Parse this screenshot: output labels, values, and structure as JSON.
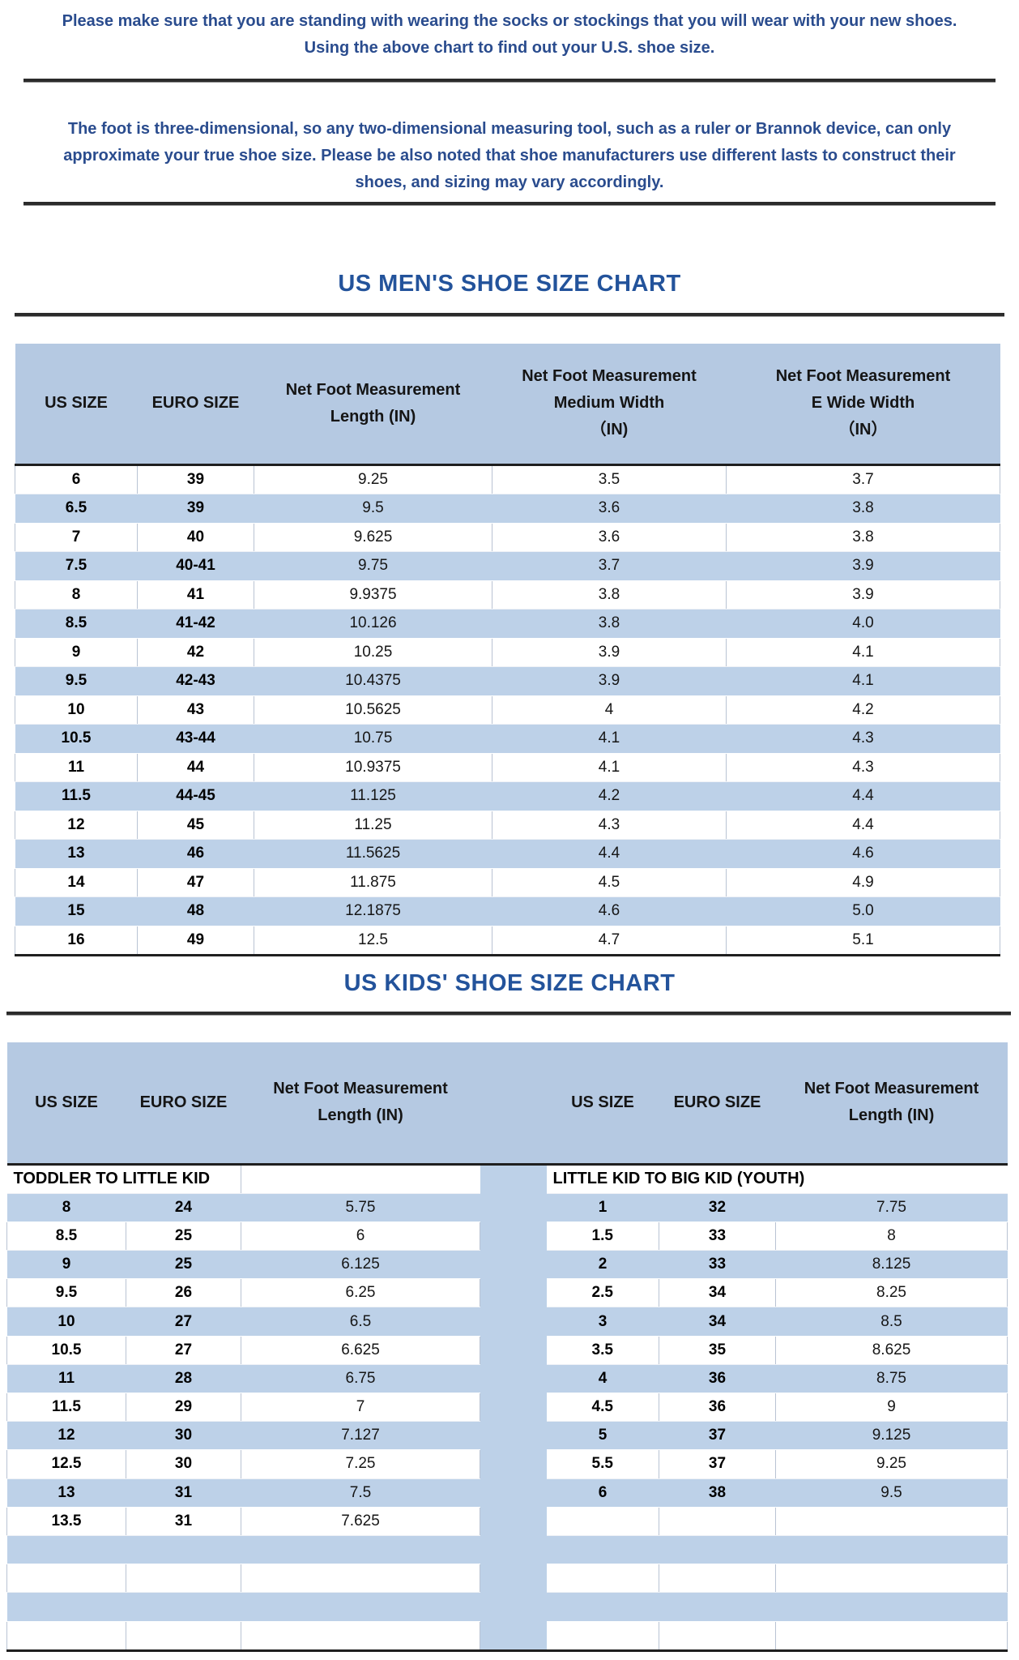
{
  "intro": {
    "paragraph1": [
      "Please make sure that you are standing with wearing the socks or stockings that you will wear with your new shoes.",
      "Using the above chart to find out your U.S. shoe size."
    ],
    "paragraph2": [
      "The foot is three-dimensional, so any two-dimensional measuring tool, such as a ruler or Brannok device, can only",
      "approximate your true shoe size. Please be also noted that shoe manufacturers use different lasts to construct their",
      "shoes, and sizing may vary accordingly."
    ]
  },
  "mens_chart": {
    "title": "US MEN'S SHOE SIZE CHART",
    "columns": [
      [
        "US SIZE"
      ],
      [
        "EURO SIZE"
      ],
      [
        "Net Foot Measurement",
        "Length (IN)"
      ],
      [
        "Net Foot Measurement",
        "Medium Width",
        "（IN)"
      ],
      [
        "Net Foot Measurement",
        "E Wide Width",
        "（IN）"
      ]
    ],
    "rows": [
      [
        "6",
        "39",
        "9.25",
        "3.5",
        "3.7"
      ],
      [
        "6.5",
        "39",
        "9.5",
        "3.6",
        "3.8"
      ],
      [
        "7",
        "40",
        "9.625",
        "3.6",
        "3.8"
      ],
      [
        "7.5",
        "40-41",
        "9.75",
        "3.7",
        "3.9"
      ],
      [
        "8",
        "41",
        "9.9375",
        "3.8",
        "3.9"
      ],
      [
        "8.5",
        "41-42",
        "10.126",
        "3.8",
        "4.0"
      ],
      [
        "9",
        "42",
        "10.25",
        "3.9",
        "4.1"
      ],
      [
        "9.5",
        "42-43",
        "10.4375",
        "3.9",
        "4.1"
      ],
      [
        "10",
        "43",
        "10.5625",
        "4",
        "4.2"
      ],
      [
        "10.5",
        "43-44",
        "10.75",
        "4.1",
        "4.3"
      ],
      [
        "11",
        "44",
        "10.9375",
        "4.1",
        "4.3"
      ],
      [
        "11.5",
        "44-45",
        "11.125",
        "4.2",
        "4.4"
      ],
      [
        "12",
        "45",
        "11.25",
        "4.3",
        "4.4"
      ],
      [
        "13",
        "46",
        "11.5625",
        "4.4",
        "4.6"
      ],
      [
        "14",
        "47",
        "11.875",
        "4.5",
        "4.9"
      ],
      [
        "15",
        "48",
        "12.1875",
        "4.6",
        "5.0"
      ],
      [
        "16",
        "49",
        "12.5",
        "4.7",
        "5.1"
      ]
    ]
  },
  "kids_chart": {
    "title": "US KIDS' SHOE SIZE CHART",
    "left_columns": [
      [
        "US SIZE"
      ],
      [
        "EURO SIZE"
      ],
      [
        "Net Foot Measurement",
        "Length (IN)"
      ]
    ],
    "right_columns": [
      [
        "US SIZE"
      ],
      [
        "EURO SIZE"
      ],
      [
        "Net Foot Measurement",
        "Length (IN)"
      ]
    ],
    "left_section": "TODDLER TO LITTLE KID",
    "right_section": "LITTLE KID TO BIG KID (YOUTH)",
    "left_rows": [
      [
        "8",
        "24",
        "5.75"
      ],
      [
        "8.5",
        "25",
        "6"
      ],
      [
        "9",
        "25",
        "6.125"
      ],
      [
        "9.5",
        "26",
        "6.25"
      ],
      [
        "10",
        "27",
        "6.5"
      ],
      [
        "10.5",
        "27",
        "6.625"
      ],
      [
        "11",
        "28",
        "6.75"
      ],
      [
        "11.5",
        "29",
        "7"
      ],
      [
        "12",
        "30",
        "7.127"
      ],
      [
        "12.5",
        "30",
        "7.25"
      ],
      [
        "13",
        "31",
        "7.5"
      ],
      [
        "13.5",
        "31",
        "7.625"
      ],
      [
        "",
        "",
        ""
      ],
      [
        "",
        "",
        ""
      ],
      [
        "",
        "",
        ""
      ],
      [
        "",
        "",
        ""
      ]
    ],
    "right_rows": [
      [
        "1",
        "32",
        "7.75"
      ],
      [
        "1.5",
        "33",
        "8"
      ],
      [
        "2",
        "33",
        "8.125"
      ],
      [
        "2.5",
        "34",
        "8.25"
      ],
      [
        "3",
        "34",
        "8.5"
      ],
      [
        "3.5",
        "35",
        "8.625"
      ],
      [
        "4",
        "36",
        "8.75"
      ],
      [
        "4.5",
        "36",
        "9"
      ],
      [
        "5",
        "37",
        "9.125"
      ],
      [
        "5.5",
        "37",
        "9.25"
      ],
      [
        "6",
        "38",
        "9.5"
      ],
      [
        "",
        "",
        ""
      ],
      [
        "",
        "",
        ""
      ],
      [
        "",
        "",
        ""
      ],
      [
        "",
        "",
        ""
      ],
      [
        "",
        "",
        ""
      ]
    ]
  },
  "colors": {
    "header_blue": "#b5c9e2",
    "stripe_blue": "#bdd1e8",
    "paragraph_navy": "#2a4c8e",
    "title_blue": "#23539b",
    "line_dark": "#1f1f1f"
  }
}
